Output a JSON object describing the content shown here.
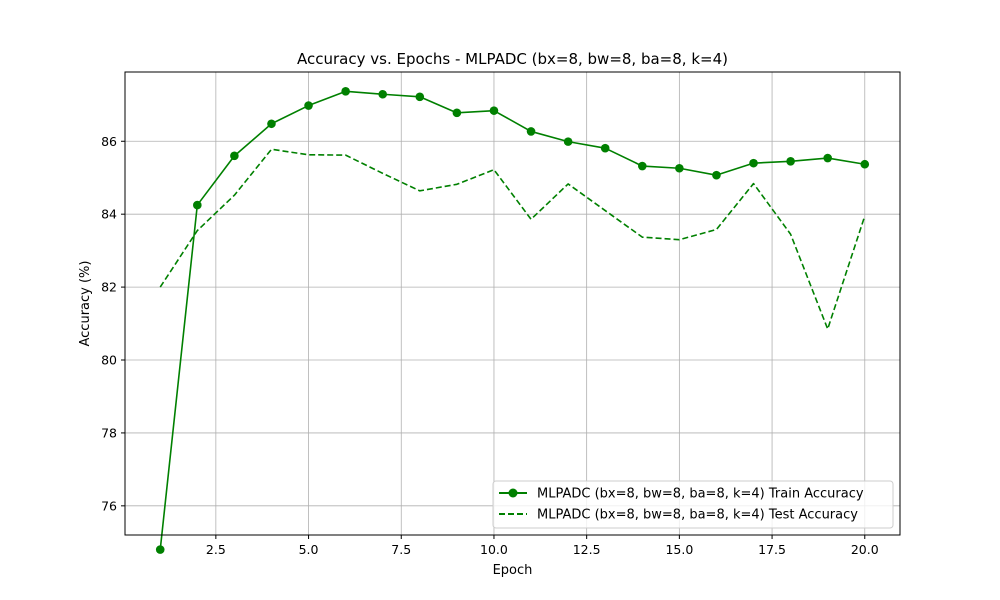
{
  "chart_data": {
    "type": "line",
    "title": "Accuracy vs. Epochs - MLPADC (bx=8, bw=8, ba=8, k=4)",
    "xlabel": "Epoch",
    "ylabel": "Accuracy (%)",
    "xlim": [
      0.05,
      20.95
    ],
    "ylim": [
      75.2,
      87.9
    ],
    "xticks": [
      2.5,
      5.0,
      7.5,
      10.0,
      12.5,
      15.0,
      17.5,
      20.0
    ],
    "xtick_labels": [
      "2.5",
      "5.0",
      "7.5",
      "10.0",
      "12.5",
      "15.0",
      "17.5",
      "20.0"
    ],
    "yticks": [
      76,
      78,
      80,
      82,
      84,
      86
    ],
    "ytick_labels": [
      "76",
      "78",
      "80",
      "82",
      "84",
      "86"
    ],
    "grid": true,
    "legend_position": "lower-right",
    "x": [
      1,
      2,
      3,
      4,
      5,
      6,
      7,
      8,
      9,
      10,
      11,
      12,
      13,
      14,
      15,
      16,
      17,
      18,
      19,
      20
    ],
    "series": [
      {
        "name": "MLPADC (bx=8, bw=8, ba=8, k=4) Train Accuracy",
        "style": "solid",
        "marker": "circle",
        "color": "#008000",
        "values": [
          74.8,
          84.25,
          85.6,
          86.48,
          86.98,
          87.37,
          87.29,
          87.22,
          86.78,
          86.84,
          86.27,
          85.99,
          85.81,
          85.32,
          85.26,
          85.07,
          85.4,
          85.45,
          85.54,
          85.37
        ]
      },
      {
        "name": "MLPADC (bx=8, bw=8, ba=8, k=4) Test Accuracy",
        "style": "dashed",
        "marker": "none",
        "color": "#008000",
        "values": [
          82.0,
          83.55,
          84.52,
          85.78,
          85.63,
          85.62,
          85.12,
          84.64,
          84.82,
          85.22,
          83.86,
          84.83,
          84.1,
          83.37,
          83.3,
          83.58,
          84.84,
          83.45,
          80.85,
          83.95
        ]
      }
    ]
  }
}
